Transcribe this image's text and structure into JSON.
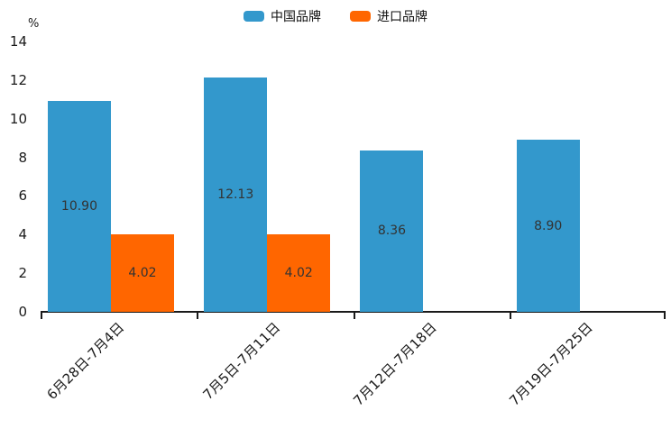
{
  "legend": {
    "items": [
      {
        "label": "中国品牌",
        "color": "#3398CC"
      },
      {
        "label": "进口品牌",
        "color": "#FF6600"
      }
    ]
  },
  "colors": {
    "china_brand_blue": "#3398CC",
    "import_brand_orange": "#FF6600",
    "axis": "#1a1a1a",
    "value_label_text": "#333333"
  },
  "chart_data": {
    "type": "bar",
    "title": "",
    "xlabel": "",
    "ylabel": "%",
    "ylim": [
      0,
      14
    ],
    "yticks": [
      0,
      2,
      4,
      6,
      8,
      10,
      12,
      14
    ],
    "grid": false,
    "legend_position": "top-center",
    "categories": [
      "6月28日-7月4日",
      "7月5日-7月11日",
      "7月12日-7月18日",
      "7月19日-7月25日"
    ],
    "series": [
      {
        "name": "中国品牌",
        "color": "#3398CC",
        "values": [
          10.9,
          12.13,
          8.36,
          8.9
        ],
        "data_labels": [
          "10.90",
          "12.13",
          "8.36",
          "8.90"
        ]
      },
      {
        "name": "进口品牌",
        "color": "#FF6600",
        "values": [
          4.02,
          4.02,
          null,
          null
        ],
        "data_labels": [
          "4.02",
          "4.02",
          "",
          ""
        ]
      }
    ]
  }
}
